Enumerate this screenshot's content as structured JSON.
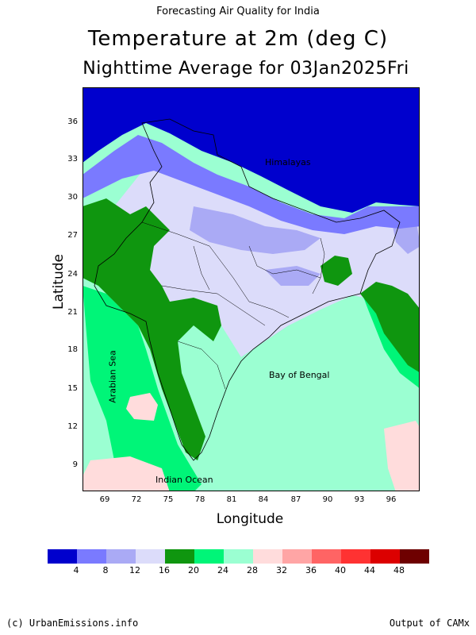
{
  "supertitle": "Forecasting Air Quality for India",
  "title": "Temperature at 2m (deg C)",
  "subtitle": "Nighttime Average for 03Jan2025Fri",
  "ylabel": "Latitude",
  "xlabel": "Longitude",
  "yticks": [
    "36",
    "33",
    "30",
    "27",
    "24",
    "21",
    "18",
    "15",
    "12",
    "9"
  ],
  "xticks": [
    "69",
    "72",
    "75",
    "78",
    "81",
    "84",
    "87",
    "90",
    "93",
    "96"
  ],
  "map_labels": {
    "himalayas": "Himalayas",
    "bay_of_bengal": "Bay of Bengal",
    "arabian_sea": "Arabian Sea",
    "indian_ocean": "Indian Ocean"
  },
  "colorbar": {
    "colors": [
      "#0000cd",
      "#7a7aff",
      "#aaaaf5",
      "#dcdcfa",
      "#0f960f",
      "#00f578",
      "#9bffd2",
      "#ffdcdc",
      "#ffa5a5",
      "#ff6464",
      "#ff3232",
      "#dc0000",
      "#6e0000"
    ],
    "ticks": [
      "4",
      "8",
      "12",
      "16",
      "20",
      "24",
      "28",
      "32",
      "36",
      "40",
      "44",
      "48"
    ]
  },
  "footer": {
    "left": "(c) UrbanEmissions.info",
    "right": "Output of CAMx"
  }
}
